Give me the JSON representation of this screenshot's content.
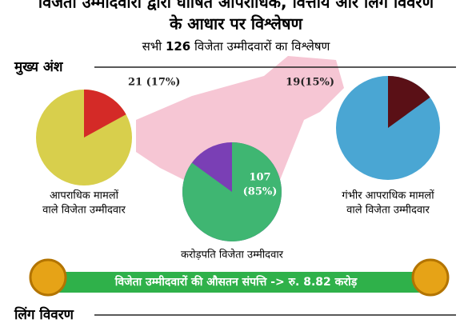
{
  "header": {
    "title_line1": "विजेता उम्मीदवारों द्वारा घोषित आपराधिक, वित्तीय और लिंग विवरण",
    "title_line2": "के आधार पर विश्लेषण",
    "subtitle_prefix": "सभी",
    "total": 126,
    "subtitle_suffix": "विजेता उम्मीदवारों का विश्लेषण"
  },
  "highlights": {
    "heading": "मुख्य अंश",
    "pies": [
      {
        "percent": 17,
        "value_label": "21 (17%)",
        "caption": [
          "आपराधिक मामलों",
          "वाले विजेता उम्मीदवार"
        ],
        "color": "#d42a27",
        "rest_color": "#d8cf4c"
      },
      {
        "percent": 85,
        "value_label": [
          "107",
          "(85%)"
        ],
        "caption": [
          "करोड़पति विजेता उम्मीदवार"
        ],
        "color": "#3fb672",
        "rest_color": "#7a3fb5"
      },
      {
        "percent": 15,
        "value_label": "19(15%)",
        "caption": [
          "गंभीर आपराधिक मामलों",
          "वाले विजेता उम्मीदवार"
        ],
        "color": "#5a1016",
        "rest_color": "#4aa6d3"
      }
    ]
  },
  "assets": {
    "text": "विजेता उम्मीदवारों की औसतन संपत्ति -> रु. 8.82 करोड़"
  },
  "gender": {
    "heading": "लिंग विवरण"
  }
}
